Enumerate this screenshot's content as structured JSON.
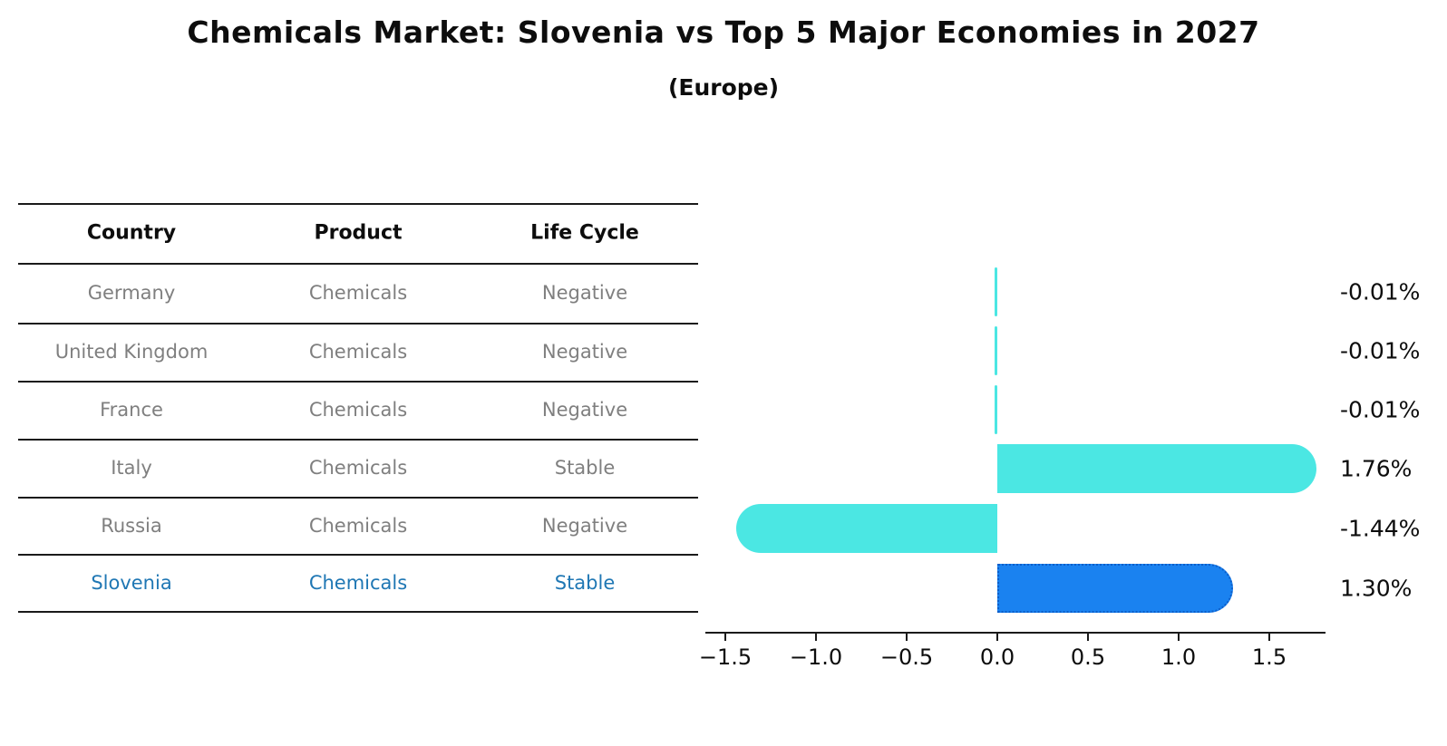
{
  "header": {
    "title": "Chemicals Market: Slovenia vs Top 5 Major Economies in 2027",
    "subtitle": "(Europe)"
  },
  "colors": {
    "bar_cyan": "#4BE7E3",
    "bar_blue": "#1A82F0",
    "bar_blue_border": "#0D5EC9",
    "table_text": "#7f7f7f",
    "highlight_text": "#1f77b4",
    "axis": "#1a1a1a"
  },
  "table": {
    "headers": [
      "Country",
      "Product",
      "Life Cycle"
    ],
    "rows": [
      {
        "country": "Germany",
        "product": "Chemicals",
        "life_cycle": "Negative",
        "highlight": false
      },
      {
        "country": "United Kingdom",
        "product": "Chemicals",
        "life_cycle": "Negative",
        "highlight": false
      },
      {
        "country": "France",
        "product": "Chemicals",
        "life_cycle": "Negative",
        "highlight": false
      },
      {
        "country": "Italy",
        "product": "Chemicals",
        "life_cycle": "Stable",
        "highlight": false
      },
      {
        "country": "Russia",
        "product": "Chemicals",
        "life_cycle": "Negative",
        "highlight": false
      },
      {
        "country": "Slovenia",
        "product": "Chemicals",
        "life_cycle": "Stable",
        "highlight": true
      }
    ]
  },
  "chart_data": {
    "type": "bar",
    "orientation": "horizontal",
    "title": "Chemicals Market: Slovenia vs Top 5 Major Economies in 2027",
    "subtitle": "(Europe)",
    "categories": [
      "Germany",
      "United Kingdom",
      "France",
      "Italy",
      "Russia",
      "Slovenia"
    ],
    "values": [
      -0.01,
      -0.01,
      -0.01,
      1.76,
      -1.44,
      1.3
    ],
    "value_labels": [
      "-0.01%",
      "-0.01%",
      "-0.01%",
      "1.76%",
      "-1.44%",
      "1.30%"
    ],
    "bar_colors": [
      "#4BE7E3",
      "#4BE7E3",
      "#4BE7E3",
      "#4BE7E3",
      "#4BE7E3",
      "#1A82F0"
    ],
    "highlight_index": 5,
    "xlabel": "",
    "ylabel": "",
    "xlim": [
      -1.61,
      1.81
    ],
    "xticks": [
      -1.5,
      -1.0,
      -0.5,
      0.0,
      0.5,
      1.0,
      1.5
    ],
    "xtick_labels": [
      "−1.5",
      "−1.0",
      "−0.5",
      "0.0",
      "0.5",
      "1.0",
      "1.5"
    ],
    "grid": false,
    "legend": false
  }
}
